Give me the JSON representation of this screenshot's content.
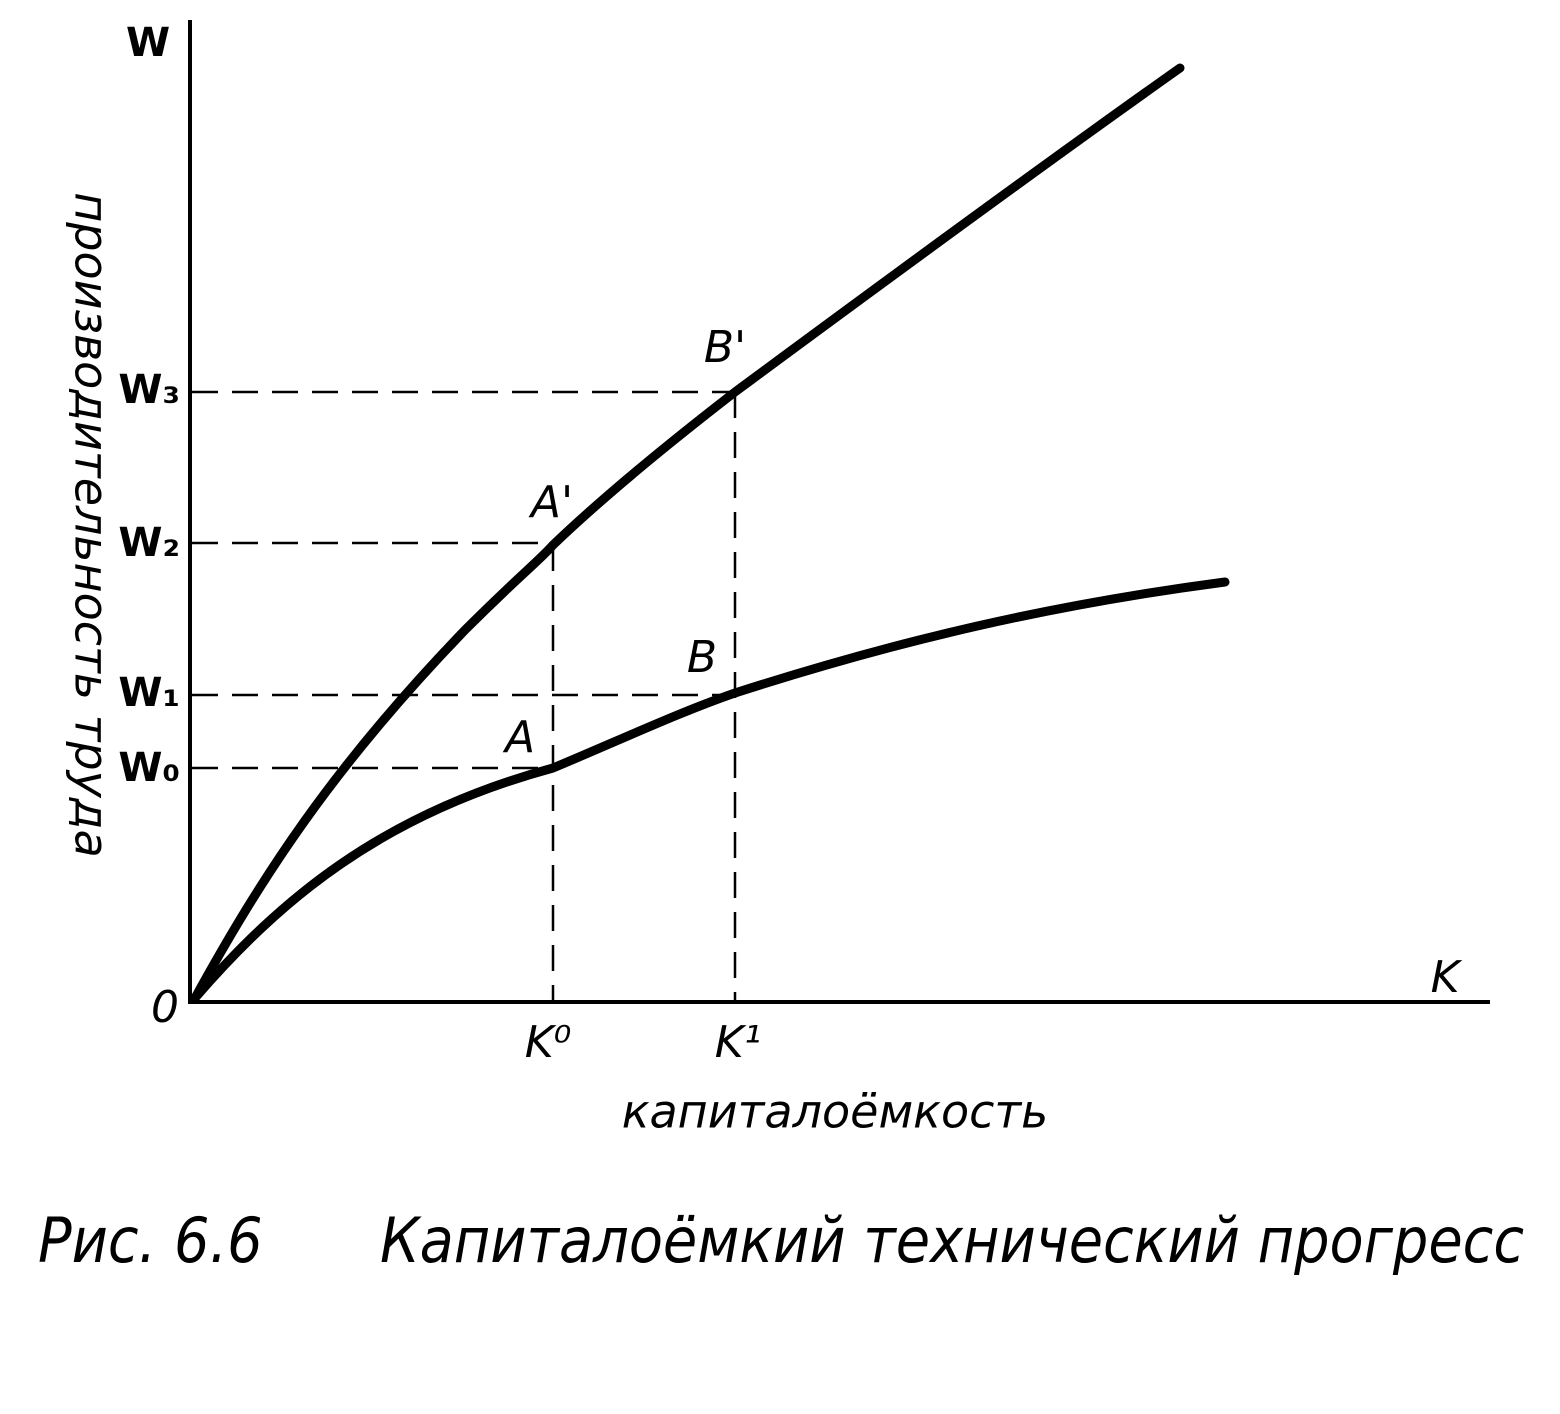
{
  "axes": {
    "y_label": "W",
    "x_label": "K",
    "origin": "0",
    "y_title": "производительность труда",
    "x_title": "капиталоёмкость"
  },
  "y_ticks": [
    "W₃",
    "W₂",
    "W₁",
    "W₀"
  ],
  "x_ticks": [
    "K⁰",
    "K¹"
  ],
  "points": [
    "A'",
    "B'",
    "A",
    "B"
  ],
  "caption": {
    "number": "Рис. 6.6",
    "title": "Капиталоёмкий технический прогресс"
  }
}
